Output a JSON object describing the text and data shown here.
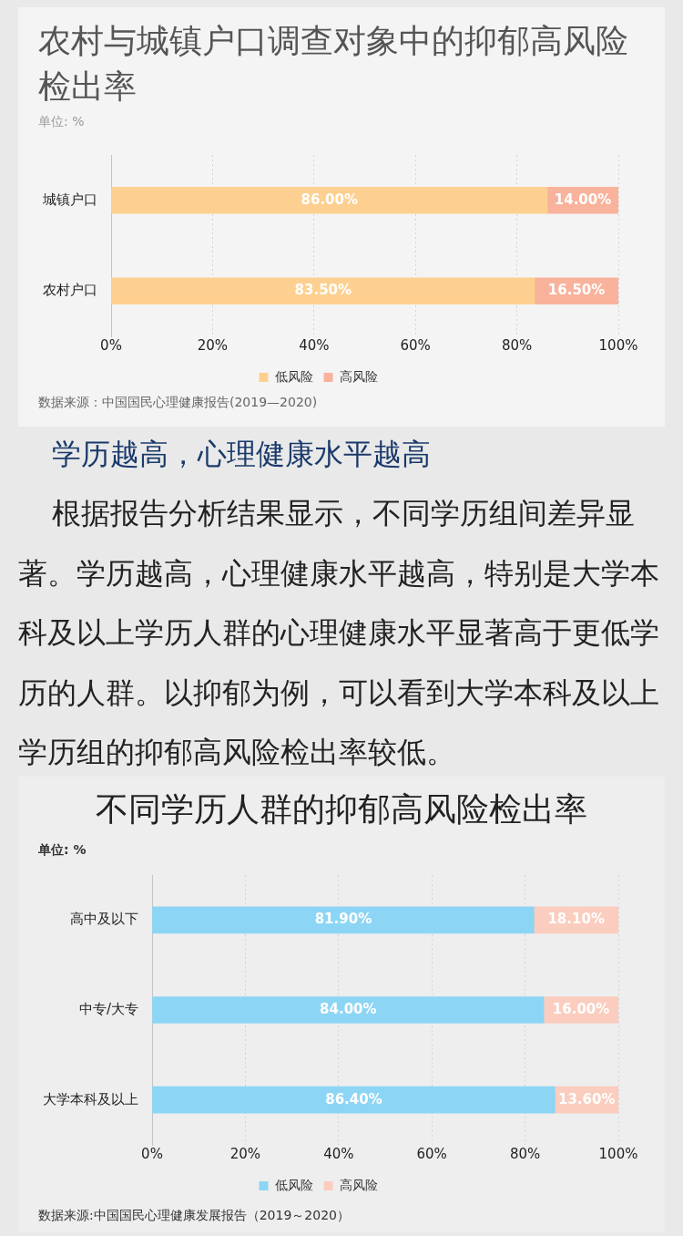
{
  "chart_data": [
    {
      "type": "bar",
      "orientation": "horizontal",
      "stacked": true,
      "title": "农村与城镇户口调查对象中的抑郁高风险检出率",
      "subtitle": "单位: %",
      "categories": [
        "城镇户口",
        "农村户口"
      ],
      "series": [
        {
          "name": "低风险",
          "color": "#fdd091",
          "values": [
            86,
            83.5
          ],
          "value_labels": [
            "86.00%",
            "83.50%"
          ]
        },
        {
          "name": "高风险",
          "color": "#f9b29c",
          "values": [
            14,
            16.5
          ],
          "value_labels": [
            "14.00%",
            "16.50%"
          ]
        }
      ],
      "xlim": [
        0,
        100
      ],
      "xticks": [
        {
          "value": 0,
          "label": "0%"
        },
        {
          "value": 20,
          "label": "20%"
        },
        {
          "value": 40,
          "label": "40%"
        },
        {
          "value": 60,
          "label": "60%"
        },
        {
          "value": 80,
          "label": "80%"
        },
        {
          "value": 100,
          "label": "100%"
        }
      ],
      "grid": "x",
      "legend": "bottom",
      "annotations": [
        "数据来源：中国国民心理健康报告(2019—2020)"
      ]
    },
    {
      "type": "other",
      "title": "学历越高，心理健康水平越高",
      "annotations": [
        "根据报告分析结果显示，不同学历组间差异显著。学历越高，心理健康水平越高，特别是大学本科及以上学历人群的心理健康水平显著高于更低学历的人群。以抑郁为例，可以看到大学本科及以上学历组的抑郁高风险检出率较低。"
      ]
    },
    {
      "type": "bar",
      "orientation": "horizontal",
      "stacked": true,
      "title": "不同学历人群的抑郁高风险检出率",
      "subtitle": "单位: %",
      "categories": [
        "高中及以下",
        "中专/大专",
        "大学本科及以上"
      ],
      "series": [
        {
          "name": "低风险",
          "color": "#8dd5f5",
          "values": [
            81.9,
            84,
            86.4
          ],
          "value_labels": [
            "81.90%",
            "84.00%",
            "86.40%"
          ]
        },
        {
          "name": "高风险",
          "color": "#facdbe",
          "values": [
            18.1,
            16,
            13.6
          ],
          "value_labels": [
            "18.10%",
            "16.00%",
            "13.60%"
          ]
        }
      ],
      "xlim": [
        0,
        100
      ],
      "xticks": [
        {
          "value": 0,
          "label": "0%"
        },
        {
          "value": 20,
          "label": "20%"
        },
        {
          "value": 40,
          "label": "40%"
        },
        {
          "value": 60,
          "label": "60%"
        },
        {
          "value": 80,
          "label": "80%"
        },
        {
          "value": 100,
          "label": "100%"
        }
      ],
      "grid": "x",
      "legend": "bottom",
      "annotations": [
        "数据来源:中国国民心理健康发展报告（2019～2020）"
      ]
    }
  ]
}
